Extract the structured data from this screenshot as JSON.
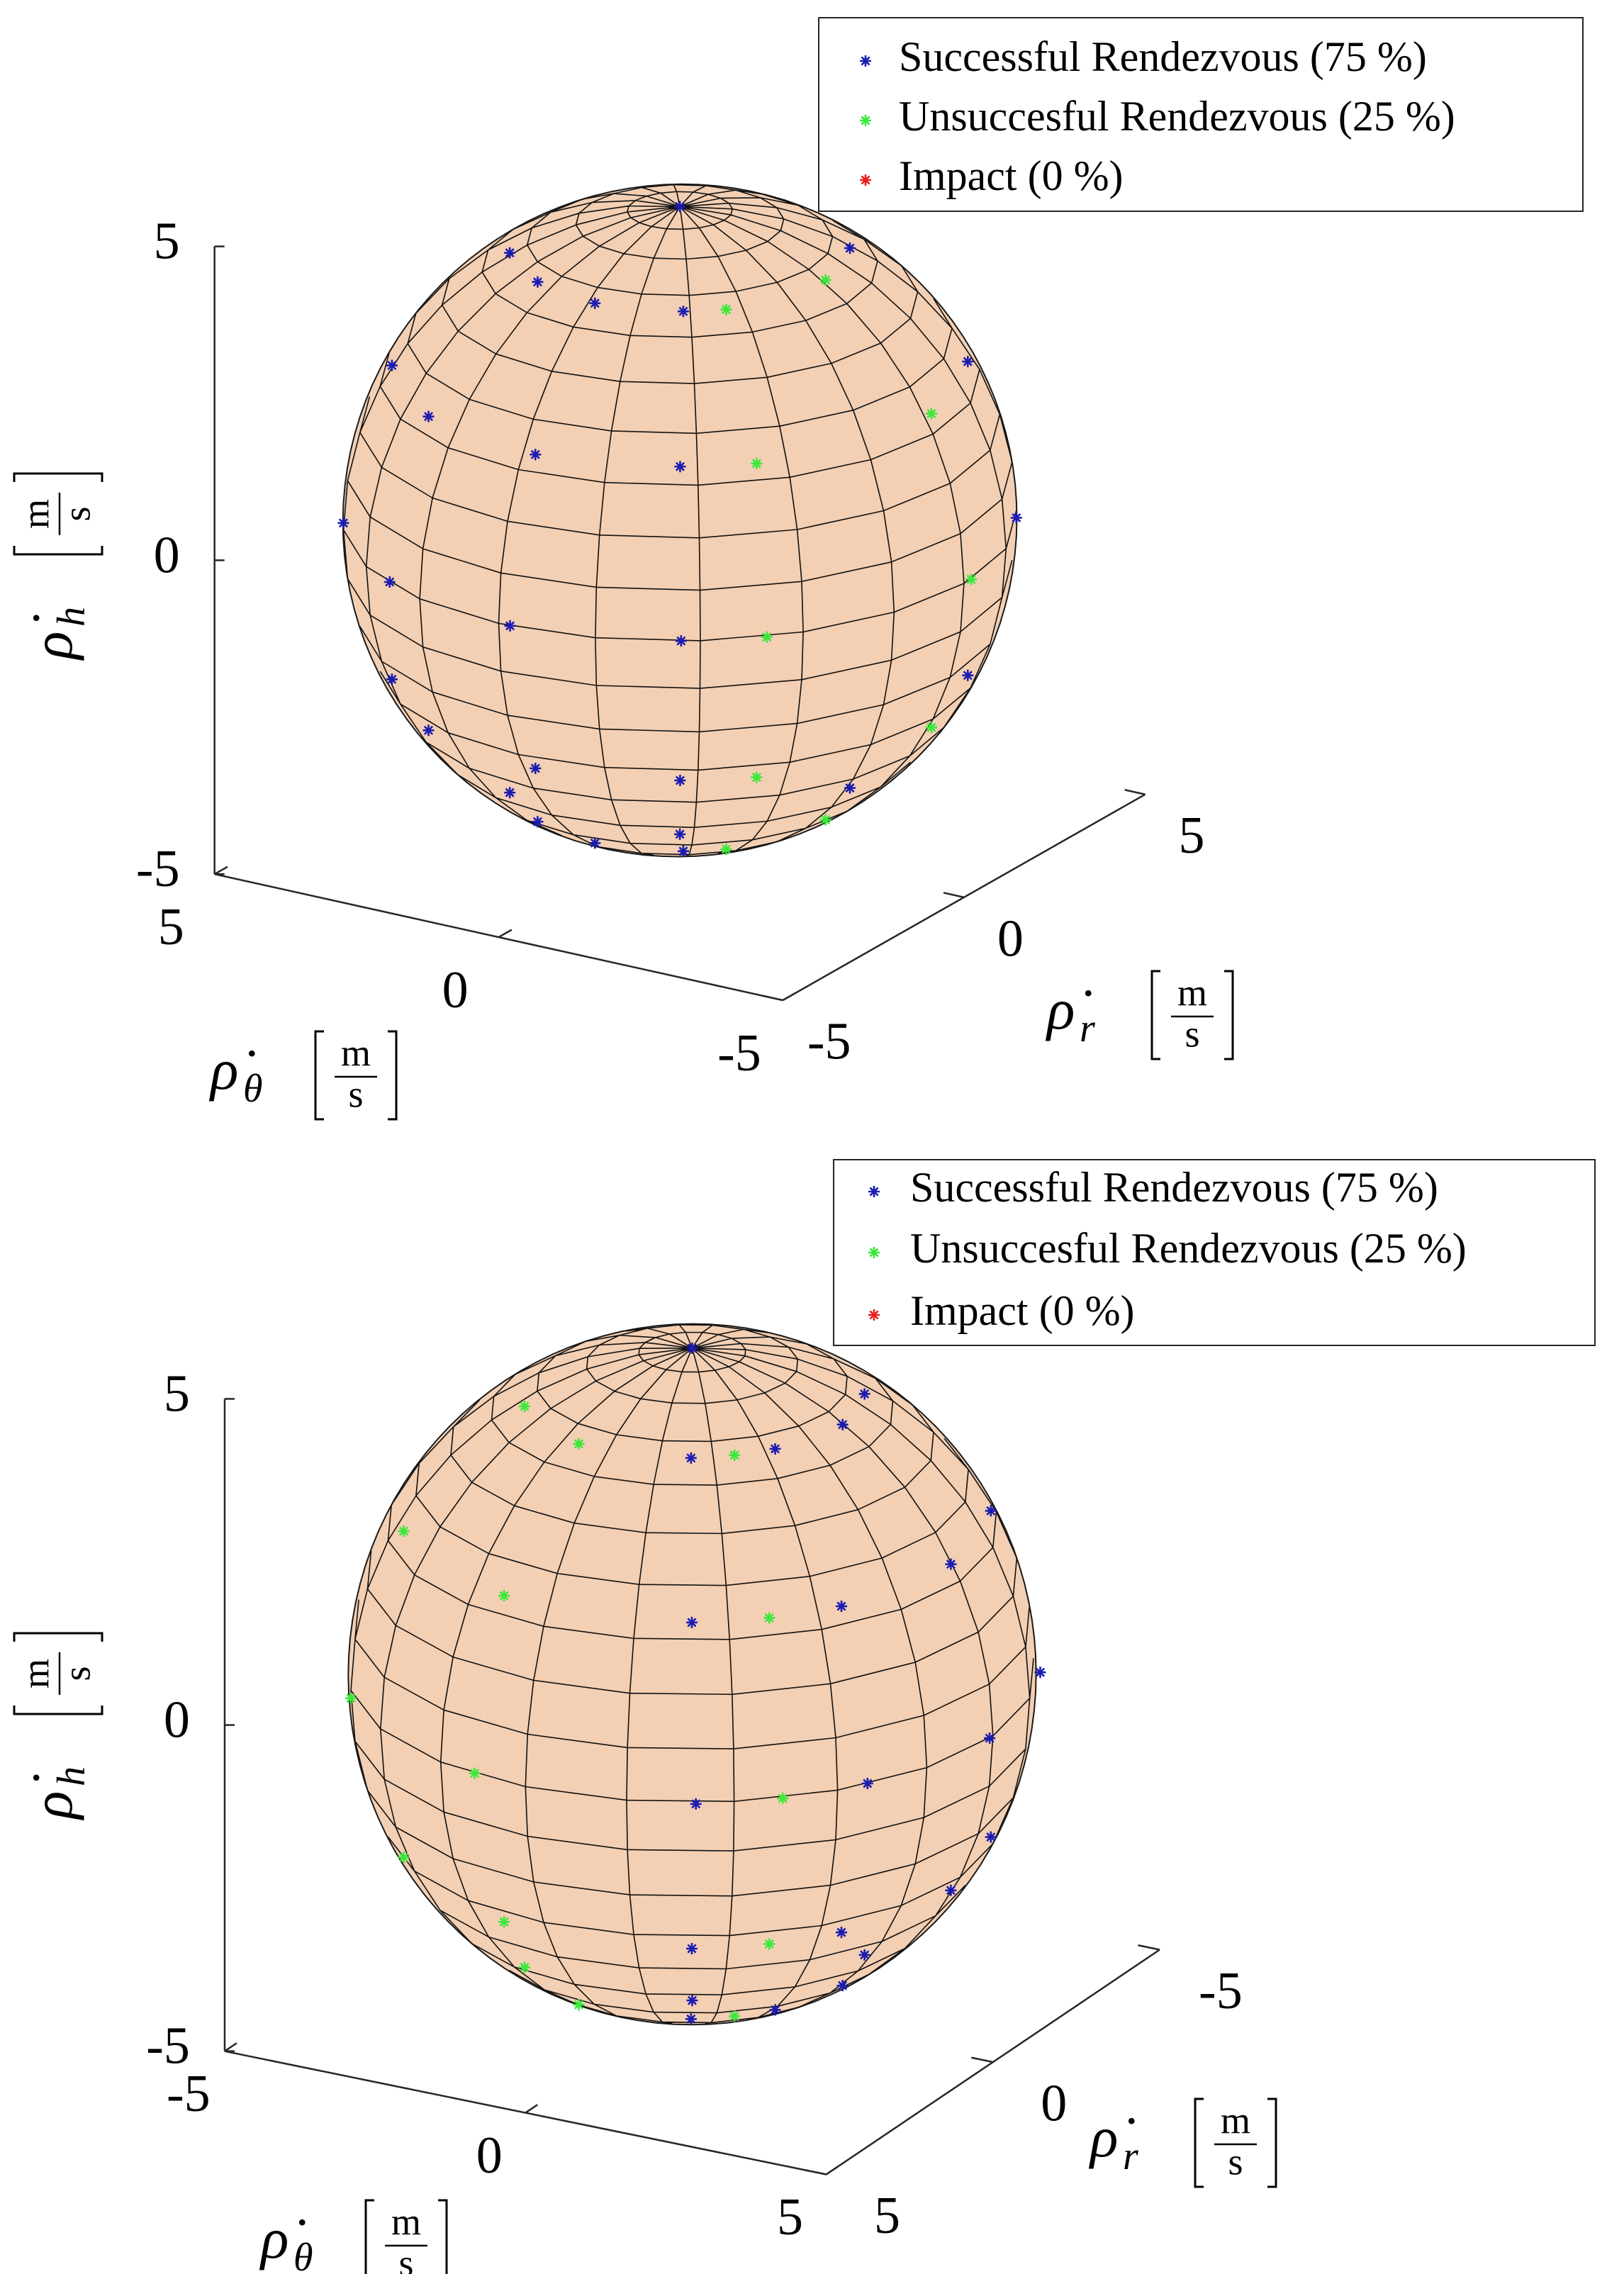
{
  "chart_data": [
    {
      "type": "scatter3d",
      "xlabel": {
        "symbol": "ρ̇",
        "subscript": "r",
        "unit_numerator": "m",
        "unit_denominator": "s"
      },
      "ylabel": {
        "symbol": "ρ̇",
        "subscript": "θ",
        "unit_numerator": "m",
        "unit_denominator": "s"
      },
      "zlabel": {
        "symbol": "ρ̇",
        "subscript": "h",
        "unit_numerator": "m",
        "unit_denominator": "s"
      },
      "xlim": [
        -5,
        5
      ],
      "xticks": [
        -5,
        0,
        5
      ],
      "ylim": [
        -5,
        5
      ],
      "yticks": [
        -5,
        0,
        5
      ],
      "zlim": [
        -5,
        5
      ],
      "zticks": [
        -5,
        0,
        5
      ],
      "legend": "upper right",
      "series": [
        {
          "name": "Successful Rendezvous (75 %)",
          "color": "#1c1cb0",
          "x": [
            -2.1,
            -3.6,
            -4.2,
            -3.6,
            -2.1,
            -2.5,
            -4.3,
            -5.0,
            -4.3,
            -2.5,
            -2.2,
            -3.8,
            -4.4,
            -3.8,
            -2.2,
            -1.4,
            -2.3,
            -2.7,
            -2.3,
            -1.4,
            1.4,
            2.3,
            2.7,
            2.3,
            1.4,
            0,
            0
          ],
          "y": [
            -1.4,
            -2.3,
            -2.7,
            -2.3,
            -1.4,
            -0.1,
            -0.2,
            -0.2,
            -0.2,
            -0.1,
            1.1,
            2.0,
            2.3,
            2.0,
            1.1,
            2.1,
            3.6,
            4.2,
            3.6,
            2.1,
            -2.1,
            -3.6,
            -4.2,
            -3.6,
            -2.1,
            0,
            0
          ],
          "z": [
            4.3,
            2.5,
            0,
            -2.5,
            -4.3,
            4.3,
            2.5,
            0,
            -2.5,
            -4.3,
            4.3,
            2.5,
            0,
            -2.5,
            -4.3,
            4.3,
            2.5,
            0,
            -2.5,
            -4.3,
            4.3,
            2.5,
            0,
            -2.5,
            -4.3,
            5,
            -5
          ]
        },
        {
          "name": "Unsuccesful Rendezvous (25 %)",
          "color": "#3ae83a",
          "x": [
            -1.7,
            -2.9,
            -3.4,
            -2.9,
            -1.7,
            0.1,
            0.2,
            0.2,
            0.2,
            0.1
          ],
          "y": [
            -1.9,
            -3.2,
            -3.7,
            -3.2,
            -1.9,
            -2.5,
            -4.3,
            -5.0,
            -4.3,
            -2.5
          ],
          "z": [
            4.3,
            2.5,
            0,
            -2.5,
            -4.3,
            4.3,
            2.5,
            0,
            -2.5,
            -4.3
          ]
        },
        {
          "name": "Impact (0 %)",
          "color": "#e82020",
          "x": [],
          "y": [],
          "z": []
        }
      ]
    },
    {
      "type": "scatter3d",
      "xlabel": {
        "symbol": "ρ̇",
        "subscript": "r",
        "unit_numerator": "m",
        "unit_denominator": "s"
      },
      "ylabel": {
        "symbol": "ρ̇",
        "subscript": "θ",
        "unit_numerator": "m",
        "unit_denominator": "s"
      },
      "zlabel": {
        "symbol": "ρ̇",
        "subscript": "h",
        "unit_numerator": "m",
        "unit_denominator": "s"
      },
      "xlim": [
        -5,
        5
      ],
      "xticks": [
        -5,
        0,
        5
      ],
      "ylim": [
        -5,
        5
      ],
      "yticks": [
        -5,
        0,
        5
      ],
      "zlim": [
        -5,
        5
      ],
      "zticks": [
        -5,
        0,
        5
      ],
      "legend": "upper right",
      "series": [
        {
          "name": "Successful Rendezvous (75 %)",
          "color": "#1c1cb0",
          "x": [
            2.2,
            3.8,
            4.4,
            3.8,
            2.2,
            1.3,
            2.2,
            2.5,
            2.2,
            1.3,
            0.0,
            0.0,
            0.1,
            0.0,
            0.0,
            -1.2,
            -2.1,
            -2.5,
            -2.1,
            -1.2,
            0,
            0
          ],
          "y": [
            1.2,
            2.1,
            2.5,
            2.1,
            1.2,
            2.1,
            3.7,
            4.3,
            3.7,
            2.1,
            2.5,
            4.3,
            5.0,
            4.3,
            2.5,
            2.2,
            3.8,
            4.4,
            3.8,
            2.2,
            0,
            0
          ],
          "z": [
            4.3,
            2.5,
            0,
            -2.5,
            -4.3,
            4.3,
            2.5,
            0,
            -2.5,
            -4.3,
            4.3,
            2.5,
            0,
            -2.5,
            -4.3,
            4.3,
            2.5,
            0,
            -2.5,
            -4.3,
            5,
            -5
          ]
        },
        {
          "name": "Unsuccesful Rendezvous (25 %)",
          "color": "#3ae83a",
          "x": [
            1.8,
            3.1,
            3.6,
            3.1,
            1.8,
            2.5,
            4.2,
            4.9,
            4.2,
            2.5,
            1.6,
            2.7,
            3.2,
            2.7,
            1.6
          ],
          "y": [
            1.7,
            3.0,
            3.5,
            3.0,
            1.7,
            -0.5,
            -0.8,
            -0.9,
            -0.8,
            -0.5,
            -1.9,
            -3.3,
            -3.9,
            -3.3,
            -1.9
          ],
          "z": [
            4.3,
            2.5,
            0,
            -2.5,
            -4.3,
            4.3,
            2.5,
            0,
            -2.5,
            -4.3,
            4.3,
            2.5,
            0,
            -2.5,
            -4.3
          ]
        },
        {
          "name": "Impact (0 %)",
          "color": "#e82020",
          "x": [],
          "y": [],
          "z": []
        }
      ]
    }
  ]
}
